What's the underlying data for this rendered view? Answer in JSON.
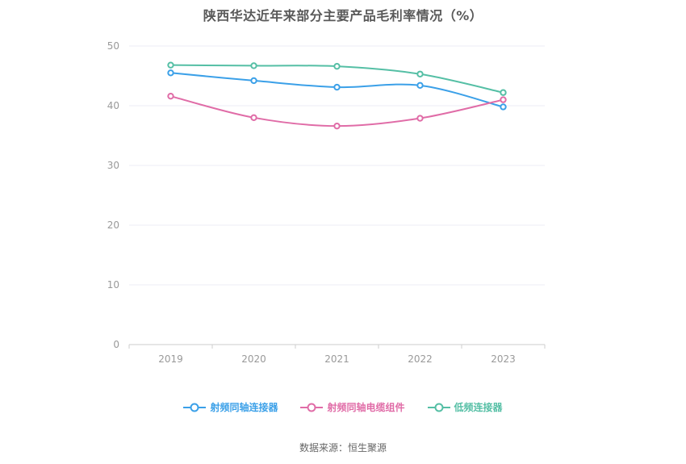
{
  "title": "陕西华达近年来部分主要产品毛利率情况（%）",
  "source": "数据来源：恒生聚源",
  "chart_data": {
    "type": "line",
    "categories": [
      "2019",
      "2020",
      "2021",
      "2022",
      "2023"
    ],
    "series": [
      {
        "name": "射频同轴连接器",
        "color": "#3BA0E8",
        "values": [
          45.5,
          44.2,
          43.1,
          43.4,
          39.8
        ]
      },
      {
        "name": "射频同轴电缆组件",
        "color": "#E06CA7",
        "values": [
          41.6,
          38.0,
          36.6,
          37.9,
          41.0
        ]
      },
      {
        "name": "低频连接器",
        "color": "#55BFA5",
        "values": [
          46.8,
          46.7,
          46.6,
          45.3,
          42.2
        ]
      }
    ],
    "title": "陕西华达近年来部分主要产品毛利率情况（%）",
    "xlabel": "",
    "ylabel": "",
    "ylim": [
      0,
      50
    ],
    "ytick_step": 10,
    "grid": true,
    "legend_position": "bottom",
    "axis_color": "#cccccc",
    "grid_color": "#ededf5",
    "tick_label_color": "#999999"
  }
}
